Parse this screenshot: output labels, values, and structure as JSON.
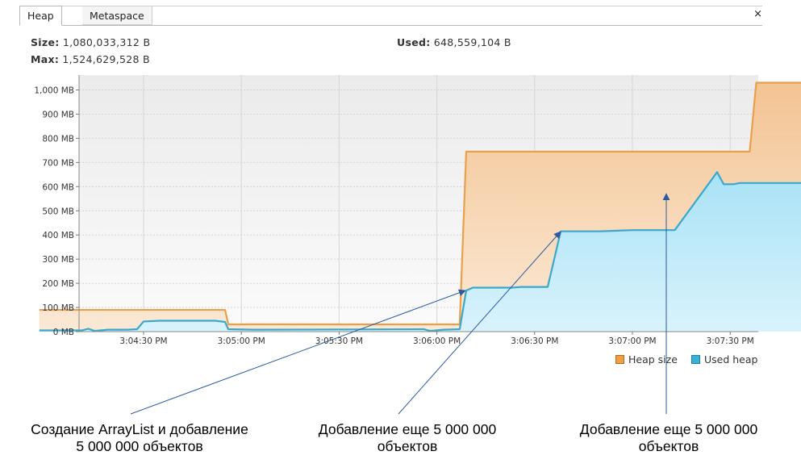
{
  "tabs": [
    {
      "label": "Heap",
      "active": true
    },
    {
      "label": "Metaspace",
      "active": false
    }
  ],
  "close_label": "×",
  "stats": {
    "size_label": "Size:",
    "size_value": "1,080,033,312 B",
    "max_label": "Max:",
    "max_value": "1,524,629,528 B",
    "used_label": "Used:",
    "used_value": "648,559,104 B"
  },
  "chart_data": {
    "type": "area",
    "ylim": [
      0,
      1000
    ],
    "xlim_seconds_from_first_tick": [
      -32,
      316
    ],
    "y_ticks": [
      "0 MB",
      "100 MB",
      "200 MB",
      "300 MB",
      "400 MB",
      "500 MB",
      "600 MB",
      "700 MB",
      "800 MB",
      "900 MB",
      "1,000 MB"
    ],
    "y_tick_values": [
      0,
      100,
      200,
      300,
      400,
      500,
      600,
      700,
      800,
      900,
      1000
    ],
    "x_ticks": [
      "3:04:30 PM",
      "3:05:00 PM",
      "3:05:30 PM",
      "3:06:00 PM",
      "3:06:30 PM",
      "3:07:00 PM",
      "3:07:30 PM"
    ],
    "grid": true,
    "legend_position": "bottom-right",
    "series": [
      {
        "name": "Heap size",
        "color": "#e8a04a",
        "fill": "#f6d6b0",
        "points": [
          [
            -32,
            90
          ],
          [
            25,
            90
          ],
          [
            26,
            30
          ],
          [
            87,
            30
          ],
          [
            92,
            30
          ],
          [
            97,
            30
          ],
          [
            99,
            745
          ],
          [
            186,
            745
          ],
          [
            188,
            1030
          ],
          [
            316,
            1030
          ]
        ]
      },
      {
        "name": "Used heap",
        "color": "#3aa8cc",
        "fill": "#bfeaf9",
        "points": [
          [
            -32,
            5
          ],
          [
            -19,
            5
          ],
          [
            -17,
            12
          ],
          [
            -15,
            3
          ],
          [
            -11,
            8
          ],
          [
            -5,
            8
          ],
          [
            -2,
            10
          ],
          [
            0,
            42
          ],
          [
            5,
            45
          ],
          [
            22,
            45
          ],
          [
            25,
            40
          ],
          [
            26,
            10
          ],
          [
            34,
            8
          ],
          [
            86,
            10
          ],
          [
            88,
            3
          ],
          [
            92,
            8
          ],
          [
            97,
            10
          ],
          [
            99,
            170
          ],
          [
            101,
            182
          ],
          [
            113,
            182
          ],
          [
            116,
            185
          ],
          [
            124,
            185
          ],
          [
            128,
            415
          ],
          [
            140,
            415
          ],
          [
            150,
            420
          ],
          [
            160,
            420
          ],
          [
            163,
            420
          ],
          [
            176,
            660
          ],
          [
            178,
            610
          ],
          [
            181,
            610
          ],
          [
            183,
            615
          ],
          [
            190,
            615
          ],
          [
            316,
            615
          ]
        ]
      }
    ],
    "annotations": [
      {
        "text_lines": [
          "Создание ArrayList и добавление",
          "5 000 000 объектов"
        ]
      },
      {
        "text_lines": [
          "Добавление еще 5 000 000",
          "объектов"
        ]
      },
      {
        "text_lines": [
          "Добавление еще 5 000 000",
          "объектов"
        ]
      }
    ]
  }
}
